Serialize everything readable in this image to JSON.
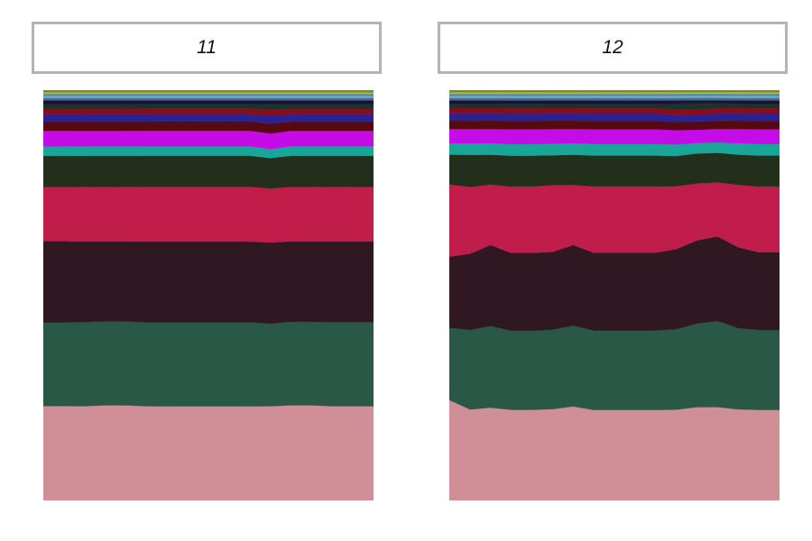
{
  "chart_data": [
    {
      "type": "area",
      "stacked": true,
      "normalized": true,
      "title": "11",
      "xlabel": "",
      "ylabel": "",
      "ylim": [
        0,
        100
      ],
      "grid": false,
      "legend": "none",
      "x": [
        0,
        1,
        2,
        3,
        4,
        5,
        6,
        7,
        8,
        9,
        10,
        11,
        12,
        13,
        14,
        15,
        16
      ],
      "series": [
        {
          "color": "#d08f97",
          "values": [
            23,
            23,
            23,
            23.2,
            23.2,
            23,
            23,
            23,
            23,
            23,
            23,
            23,
            23.2,
            23.2,
            23,
            23,
            23
          ]
        },
        {
          "color": "#2a5847",
          "values": [
            20.4,
            20.4,
            20.5,
            20.5,
            20.5,
            20.5,
            20.5,
            20.5,
            20.5,
            20.5,
            20.5,
            20.2,
            20.4,
            20.4,
            20.5,
            20.5,
            20.5
          ]
        },
        {
          "color": "#301822",
          "values": [
            19.8,
            19.8,
            19.7,
            19.5,
            19.5,
            19.7,
            19.7,
            19.7,
            19.7,
            19.7,
            19.7,
            19.8,
            19.6,
            19.6,
            19.7,
            19.7,
            19.7
          ]
        },
        {
          "color": "#c01d4b",
          "values": [
            13.2,
            13.2,
            13.3,
            13.3,
            13.3,
            13.4,
            13.4,
            13.4,
            13.4,
            13.4,
            13.4,
            13.2,
            13.3,
            13.3,
            13.3,
            13.3,
            13.3
          ]
        },
        {
          "color": "#22301b",
          "values": [
            7.6,
            7.6,
            7.6,
            7.6,
            7.6,
            7.6,
            7.6,
            7.6,
            7.6,
            7.6,
            7.6,
            7.4,
            7.6,
            7.6,
            7.6,
            7.6,
            7.6
          ]
        },
        {
          "color": "#17a698",
          "values": [
            2.3,
            2.3,
            2.3,
            2.3,
            2.3,
            2.3,
            2.3,
            2.3,
            2.3,
            2.3,
            2.3,
            2.2,
            2.3,
            2.3,
            2.3,
            2.3,
            2.3
          ]
        },
        {
          "color": "#c50be8",
          "values": [
            3.8,
            3.8,
            3.8,
            3.8,
            3.8,
            3.8,
            3.8,
            3.8,
            3.8,
            3.8,
            3.8,
            3.8,
            3.8,
            3.8,
            3.8,
            3.8,
            3.8
          ]
        },
        {
          "color": "#58090f",
          "values": [
            2.2,
            2.2,
            2.2,
            2.2,
            2.2,
            2.2,
            2.2,
            2.2,
            2.2,
            2.2,
            2.2,
            2.4,
            2.2,
            2.2,
            2.2,
            2.2,
            2.2
          ]
        },
        {
          "color": "#2b2290",
          "values": [
            1.9,
            1.9,
            1.9,
            1.9,
            1.9,
            1.9,
            1.9,
            1.9,
            1.9,
            1.9,
            1.9,
            2.0,
            1.9,
            1.9,
            1.9,
            1.9,
            1.9
          ]
        },
        {
          "color": "#8c0b1b",
          "values": [
            1.3,
            1.3,
            1.3,
            1.3,
            1.3,
            1.3,
            1.3,
            1.3,
            1.3,
            1.3,
            1.3,
            1.4,
            1.3,
            1.3,
            1.3,
            1.3,
            1.3
          ]
        },
        {
          "color": "#1d3328",
          "values": [
            1.2,
            1.2,
            1.2,
            1.2,
            1.2,
            1.2,
            1.2,
            1.2,
            1.2,
            1.2,
            1.2,
            1.5,
            1.2,
            1.2,
            1.2,
            1.2,
            1.2
          ]
        },
        {
          "color": "#15133e",
          "values": [
            0.8,
            0.8,
            0.8,
            0.8,
            0.8,
            0.8,
            0.8,
            0.8,
            0.8,
            0.8,
            0.8,
            0.8,
            0.8,
            0.8,
            0.8,
            0.8,
            0.8
          ]
        },
        {
          "color": "#4a6b7d",
          "values": [
            0.6,
            0.6,
            0.6,
            0.6,
            0.6,
            0.6,
            0.6,
            0.6,
            0.6,
            0.6,
            0.6,
            0.6,
            0.6,
            0.6,
            0.6,
            0.6,
            0.6
          ]
        },
        {
          "color": "#7fa3c4",
          "values": [
            0.5,
            0.5,
            0.5,
            0.5,
            0.5,
            0.5,
            0.5,
            0.5,
            0.5,
            0.5,
            0.5,
            0.5,
            0.5,
            0.5,
            0.5,
            0.5,
            0.5
          ]
        },
        {
          "color": "#2d9ab0",
          "values": [
            0.5,
            0.5,
            0.5,
            0.5,
            0.5,
            0.5,
            0.5,
            0.5,
            0.5,
            0.5,
            0.5,
            0.5,
            0.5,
            0.5,
            0.5,
            0.5,
            0.5
          ]
        },
        {
          "color": "#e2a13a",
          "values": [
            0.4,
            0.4,
            0.4,
            0.4,
            0.4,
            0.4,
            0.4,
            0.4,
            0.4,
            0.4,
            0.4,
            0.4,
            0.4,
            0.4,
            0.4,
            0.4,
            0.4
          ]
        },
        {
          "color": "#6e8e2f",
          "values": [
            0.5,
            0.5,
            0.5,
            0.5,
            0.5,
            0.5,
            0.5,
            0.5,
            0.5,
            0.5,
            0.5,
            0.5,
            0.5,
            0.5,
            0.5,
            0.5,
            0.5
          ]
        }
      ]
    },
    {
      "type": "area",
      "stacked": true,
      "normalized": true,
      "title": "12",
      "xlabel": "",
      "ylabel": "",
      "ylim": [
        0,
        100
      ],
      "grid": false,
      "legend": "none",
      "x": [
        0,
        1,
        2,
        3,
        4,
        5,
        6,
        7,
        8,
        9,
        10,
        11,
        12,
        13,
        14,
        15,
        16
      ],
      "series": [
        {
          "color": "#d08f97",
          "values": [
            24.6,
            22.2,
            22.7,
            22,
            22,
            22.3,
            23,
            22,
            22,
            22,
            22,
            22.2,
            23.1,
            23.1,
            22.3,
            22,
            22
          ]
        },
        {
          "color": "#2a5847",
          "values": [
            17.7,
            19.4,
            20,
            19.2,
            19.2,
            19.4,
            19.8,
            19.3,
            19.3,
            19.3,
            19.3,
            19.7,
            20.7,
            21.3,
            19.9,
            19.4,
            19.4
          ]
        },
        {
          "color": "#301822",
          "values": [
            17.4,
            18.6,
            19.8,
            18.9,
            18.9,
            19,
            19.7,
            18.9,
            18.9,
            18.9,
            18.9,
            19.6,
            20.6,
            20.9,
            19.8,
            18.9,
            18.9
          ]
        },
        {
          "color": "#c01d4b",
          "values": [
            17.7,
            16.3,
            14.8,
            16.1,
            16.1,
            16.3,
            14.7,
            16.1,
            16.1,
            16.1,
            16.1,
            15.4,
            14.1,
            13.4,
            15.3,
            16.0,
            16.0
          ]
        },
        {
          "color": "#22301b",
          "values": [
            7.3,
            7.8,
            7.3,
            7.5,
            7.5,
            7.3,
            7.4,
            7.5,
            7.5,
            7.5,
            7.5,
            7.4,
            7.4,
            7.3,
            7.4,
            7.5,
            7.5
          ]
        },
        {
          "color": "#17a698",
          "values": [
            2.8,
            2.8,
            2.8,
            2.8,
            2.8,
            2.8,
            2.8,
            2.8,
            2.8,
            2.8,
            2.8,
            2.8,
            2.6,
            2.6,
            2.8,
            2.8,
            2.8
          ]
        },
        {
          "color": "#c50be8",
          "values": [
            3.5,
            3.5,
            3.5,
            3.6,
            3.6,
            3.6,
            3.5,
            3.6,
            3.6,
            3.6,
            3.6,
            3.5,
            3.3,
            3.3,
            3.5,
            3.6,
            3.6
          ]
        },
        {
          "color": "#58090f",
          "values": [
            2.0,
            2.0,
            2.0,
            2.0,
            2.0,
            2.0,
            2.0,
            2.0,
            2.0,
            2.0,
            2.0,
            2.0,
            2.0,
            2.0,
            2.0,
            2.0,
            2.0
          ]
        },
        {
          "color": "#2b2290",
          "values": [
            1.8,
            1.8,
            1.8,
            1.8,
            1.8,
            1.8,
            1.8,
            1.8,
            1.8,
            1.8,
            1.8,
            1.8,
            1.8,
            1.8,
            1.8,
            1.8,
            1.8
          ]
        },
        {
          "color": "#8c0b1b",
          "values": [
            1.3,
            1.3,
            1.3,
            1.3,
            1.3,
            1.3,
            1.3,
            1.3,
            1.3,
            1.3,
            1.3,
            1.3,
            1.3,
            1.3,
            1.3,
            1.3,
            1.3
          ]
        },
        {
          "color": "#1d3328",
          "values": [
            1.1,
            1.1,
            1.1,
            1.1,
            1.1,
            1.1,
            1.1,
            1.1,
            1.1,
            1.1,
            1.1,
            1.4,
            1.5,
            1.3,
            1.1,
            1.1,
            1.1
          ]
        },
        {
          "color": "#15133e",
          "values": [
            0.8,
            0.8,
            0.8,
            0.8,
            0.8,
            0.8,
            0.8,
            0.8,
            0.8,
            0.8,
            0.8,
            0.8,
            0.7,
            0.7,
            0.8,
            0.8,
            0.8
          ]
        },
        {
          "color": "#4a6b7d",
          "values": [
            0.6,
            0.6,
            0.6,
            0.6,
            0.6,
            0.6,
            0.6,
            0.6,
            0.6,
            0.6,
            0.6,
            0.6,
            0.6,
            0.6,
            0.6,
            0.6,
            0.6
          ]
        },
        {
          "color": "#7fa3c4",
          "values": [
            0.5,
            0.5,
            0.5,
            0.5,
            0.5,
            0.5,
            0.5,
            0.5,
            0.5,
            0.5,
            0.5,
            0.5,
            0.5,
            0.5,
            0.5,
            0.5,
            0.5
          ]
        },
        {
          "color": "#2d9ab0",
          "values": [
            0.5,
            0.5,
            0.5,
            0.5,
            0.5,
            0.5,
            0.5,
            0.5,
            0.5,
            0.5,
            0.5,
            0.5,
            0.5,
            0.5,
            0.5,
            0.5,
            0.5
          ]
        },
        {
          "color": "#e2a13a",
          "values": [
            0.4,
            0.4,
            0.4,
            0.4,
            0.4,
            0.4,
            0.4,
            0.4,
            0.4,
            0.4,
            0.4,
            0.4,
            0.4,
            0.4,
            0.4,
            0.4,
            0.4
          ]
        },
        {
          "color": "#6e8e2f",
          "values": [
            0.5,
            0.5,
            0.5,
            0.5,
            0.5,
            0.5,
            0.5,
            0.5,
            0.5,
            0.5,
            0.5,
            0.5,
            0.5,
            0.5,
            0.5,
            0.5,
            0.5
          ]
        }
      ]
    }
  ]
}
